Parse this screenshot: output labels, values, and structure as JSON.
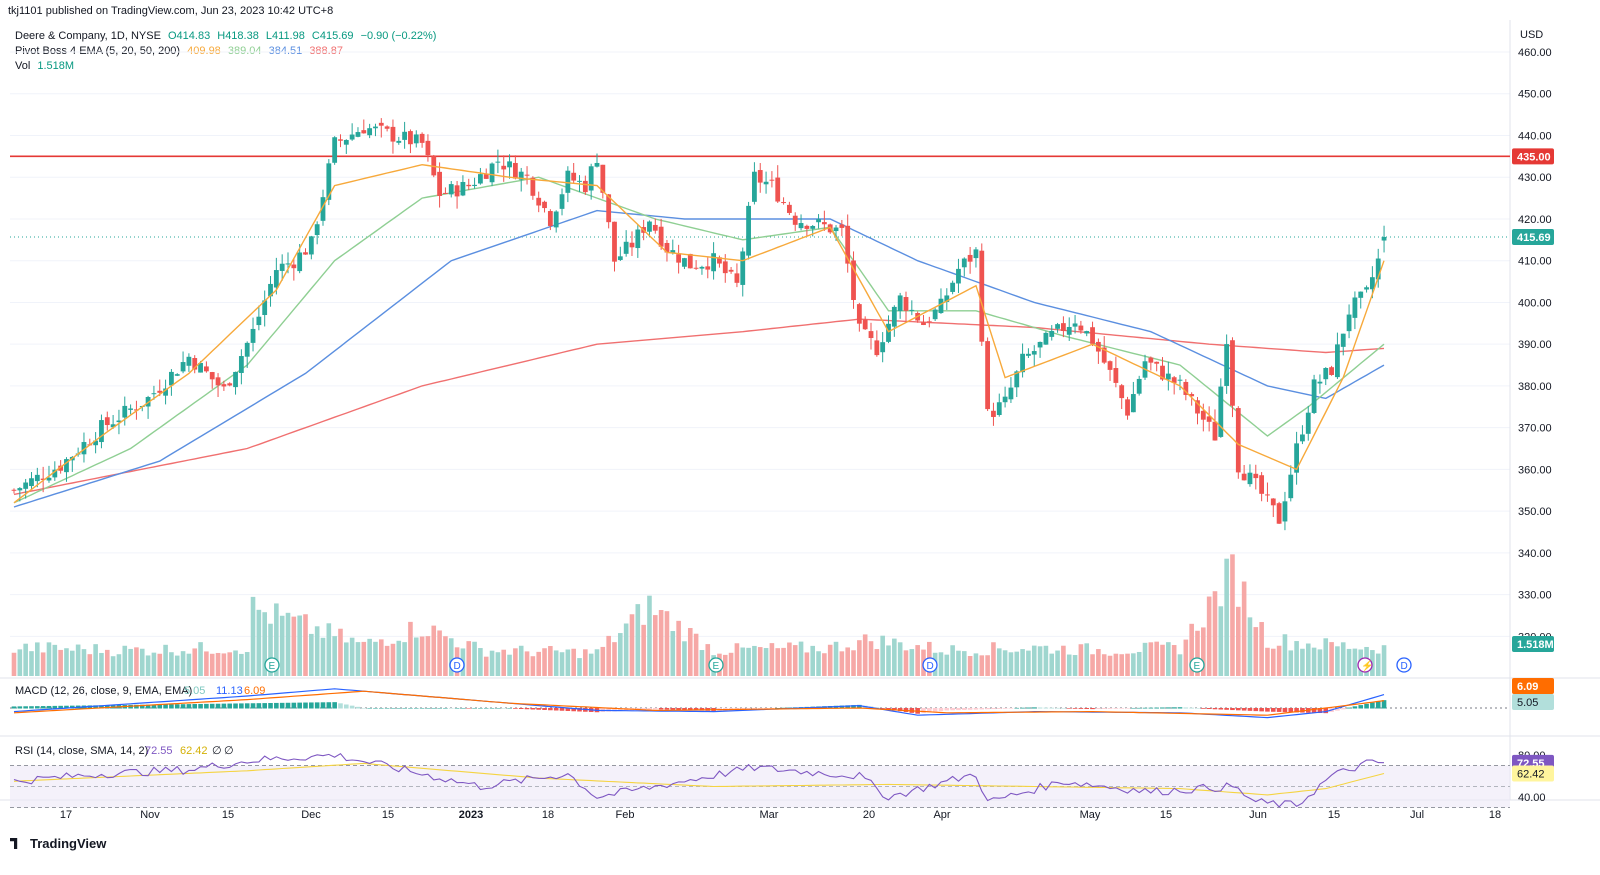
{
  "header": {
    "publisher": "tkj1101 published on TradingView.com, Jun 23, 2023 10:42 UTC+8",
    "symbol": "Deere & Company, 1D, NYSE",
    "ohlc": {
      "o": "O414.83",
      "h": "H418.38",
      "l": "L411.98",
      "c": "C415.69",
      "chg": "−0.90 (−0.22%)"
    },
    "ema_label": "Pivot Boss 4 EMA (5, 20, 50, 200)",
    "ema_values": [
      "409.98",
      "389.04",
      "384.51",
      "388.87"
    ],
    "vol_label": "Vol",
    "vol_value": "1.518M"
  },
  "currency": "USD",
  "colors": {
    "up": "#26a69a",
    "down": "#ef5350",
    "ema5": "#f7a93b",
    "ema20": "#8fcf93",
    "ema50": "#5b8fe0",
    "ema200": "#f07070",
    "resistance": "#e53935",
    "macd": "#2962ff",
    "signal": "#ff6d00",
    "rsi": "#7e57c2",
    "rsi_ma": "#f5d442"
  },
  "price_axis_ticks": [
    "460.00",
    "450.00",
    "440.00",
    "430.00",
    "420.00",
    "410.00",
    "400.00",
    "390.00",
    "380.00",
    "370.00",
    "360.00",
    "350.00",
    "340.00",
    "330.00",
    "320.00"
  ],
  "time_axis_ticks": [
    "17",
    "Nov",
    "15",
    "Dec",
    "15",
    "2023",
    "18",
    "Feb",
    "Mar",
    "20",
    "Apr",
    "May",
    "15",
    "Jun",
    "15",
    "Jul",
    "18"
  ],
  "price_tags": {
    "resistance": "435.00",
    "last": "415.69",
    "volume": "1.518M"
  },
  "event_markers": [
    {
      "text": "E",
      "kind": "earnings"
    },
    {
      "text": "D",
      "kind": "dividend"
    },
    {
      "text": "E",
      "kind": "earnings"
    },
    {
      "text": "D",
      "kind": "dividend"
    },
    {
      "text": "E",
      "kind": "earnings"
    },
    {
      "text": "D",
      "kind": "dividend"
    }
  ],
  "macd": {
    "label": "MACD (12, 26, close, 9, EMA, EMA)",
    "values": [
      "5.05",
      "11.13",
      "6.09"
    ],
    "tags": [
      "6.09",
      "5.05"
    ]
  },
  "rsi": {
    "label": "RSI (14, close, SMA, 14, 2)",
    "values": [
      "72.55",
      "62.42",
      "∅",
      "∅"
    ],
    "axis": [
      "80.00",
      "40.00"
    ],
    "tags": [
      "72.55",
      "62.42"
    ]
  },
  "footer_logo": "TradingView",
  "chart_data": {
    "type": "candlestick",
    "title": "Deere & Company, 1D, NYSE",
    "ylabel": "USD",
    "ylim": [
      338,
      462
    ],
    "resistance_level": 435.0,
    "last_price": 415.69,
    "anchors": [
      [
        0,
        355,
        352
      ],
      [
        8,
        361,
        356
      ],
      [
        15,
        370,
        367
      ],
      [
        23,
        377,
        374
      ],
      [
        30,
        387,
        385
      ],
      [
        36,
        379,
        376
      ],
      [
        41,
        393,
        391
      ],
      [
        45,
        408,
        405
      ],
      [
        48,
        410,
        408
      ],
      [
        51,
        414,
        412
      ],
      [
        52,
        420,
        416
      ],
      [
        55,
        438,
        434
      ],
      [
        60,
        442,
        438
      ],
      [
        65,
        440,
        437
      ],
      [
        70,
        438,
        436
      ],
      [
        73,
        426,
        424
      ],
      [
        78,
        428,
        426
      ],
      [
        83,
        434,
        432
      ],
      [
        88,
        430,
        428
      ],
      [
        92,
        420,
        418
      ],
      [
        95,
        430,
        428
      ],
      [
        98,
        428,
        426
      ],
      [
        100,
        435,
        433
      ],
      [
        103,
        410,
        408
      ],
      [
        106,
        414,
        412
      ],
      [
        109,
        420,
        418
      ],
      [
        112,
        413,
        411
      ],
      [
        116,
        409,
        407
      ],
      [
        120,
        410,
        408
      ],
      [
        124,
        404,
        402
      ],
      [
        127,
        430,
        428
      ],
      [
        130,
        428,
        426
      ],
      [
        134,
        420,
        418
      ],
      [
        137,
        419,
        417
      ],
      [
        142,
        417,
        415
      ],
      [
        145,
        393,
        391
      ],
      [
        148,
        389,
        387
      ],
      [
        152,
        401,
        399
      ],
      [
        156,
        395,
        393
      ],
      [
        159,
        399,
        397
      ],
      [
        162,
        408,
        406
      ],
      [
        165,
        412,
        410
      ],
      [
        167,
        373,
        371
      ],
      [
        170,
        376,
        374
      ],
      [
        173,
        386,
        384
      ],
      [
        178,
        392,
        390
      ],
      [
        182,
        396,
        394
      ],
      [
        185,
        391,
        389
      ],
      [
        188,
        383,
        381
      ],
      [
        191,
        374,
        372
      ],
      [
        194,
        386,
        384
      ],
      [
        197,
        383,
        381
      ],
      [
        200,
        380,
        378
      ],
      [
        203,
        374,
        372
      ],
      [
        206,
        368,
        366
      ],
      [
        208,
        392,
        390
      ],
      [
        210,
        361,
        359
      ],
      [
        213,
        356,
        354
      ],
      [
        217,
        348,
        346
      ],
      [
        220,
        365,
        363
      ],
      [
        223,
        380,
        378
      ],
      [
        226,
        384,
        382
      ],
      [
        229,
        398,
        396
      ],
      [
        232,
        402,
        400
      ],
      [
        234,
        410,
        408
      ],
      [
        235,
        416,
        416
      ]
    ],
    "ohlc": [],
    "ema5_anchors": [
      [
        0,
        352
      ],
      [
        15,
        368
      ],
      [
        30,
        383
      ],
      [
        45,
        403
      ],
      [
        55,
        428
      ],
      [
        70,
        433
      ],
      [
        85,
        430
      ],
      [
        100,
        428
      ],
      [
        112,
        412
      ],
      [
        125,
        410
      ],
      [
        140,
        418
      ],
      [
        150,
        393
      ],
      [
        165,
        404
      ],
      [
        170,
        382
      ],
      [
        185,
        390
      ],
      [
        200,
        380
      ],
      [
        210,
        366
      ],
      [
        220,
        360
      ],
      [
        228,
        382
      ],
      [
        235,
        410
      ]
    ],
    "ema20_anchors": [
      [
        0,
        352
      ],
      [
        20,
        365
      ],
      [
        40,
        385
      ],
      [
        55,
        410
      ],
      [
        70,
        425
      ],
      [
        90,
        430
      ],
      [
        110,
        420
      ],
      [
        125,
        415
      ],
      [
        140,
        418
      ],
      [
        150,
        398
      ],
      [
        165,
        398
      ],
      [
        180,
        392
      ],
      [
        200,
        385
      ],
      [
        215,
        368
      ],
      [
        222,
        375
      ],
      [
        235,
        390
      ]
    ],
    "ema50_anchors": [
      [
        0,
        351
      ],
      [
        25,
        362
      ],
      [
        50,
        383
      ],
      [
        75,
        410
      ],
      [
        100,
        422
      ],
      [
        115,
        420
      ],
      [
        140,
        420
      ],
      [
        155,
        410
      ],
      [
        175,
        400
      ],
      [
        195,
        393
      ],
      [
        215,
        380
      ],
      [
        225,
        377
      ],
      [
        235,
        385
      ]
    ],
    "ema200_anchors": [
      [
        0,
        354
      ],
      [
        40,
        365
      ],
      [
        70,
        380
      ],
      [
        100,
        390
      ],
      [
        125,
        393
      ],
      [
        145,
        396
      ],
      [
        175,
        394
      ],
      [
        205,
        390
      ],
      [
        225,
        388
      ],
      [
        235,
        389
      ]
    ],
    "volume_anchors": [
      [
        0,
        0.55
      ],
      [
        20,
        0.5
      ],
      [
        40,
        0.55
      ],
      [
        41,
        1.3
      ],
      [
        60,
        0.6
      ],
      [
        70,
        0.95
      ],
      [
        80,
        0.5
      ],
      [
        100,
        0.45
      ],
      [
        109,
        1.35
      ],
      [
        120,
        0.5
      ],
      [
        140,
        0.55
      ],
      [
        147,
        0.7
      ],
      [
        160,
        0.5
      ],
      [
        175,
        0.55
      ],
      [
        187,
        0.5
      ],
      [
        200,
        0.55
      ],
      [
        209,
        2.0
      ],
      [
        215,
        0.7
      ],
      [
        225,
        0.6
      ],
      [
        235,
        0.55
      ]
    ],
    "macd_anchors": [
      [
        0,
        -3
      ],
      [
        40,
        10
      ],
      [
        55,
        16
      ],
      [
        75,
        8
      ],
      [
        100,
        -2
      ],
      [
        120,
        -3
      ],
      [
        145,
        2
      ],
      [
        155,
        -6
      ],
      [
        175,
        -3
      ],
      [
        200,
        -4
      ],
      [
        215,
        -8
      ],
      [
        225,
        -3
      ],
      [
        235,
        11.13
      ]
    ],
    "signal_anchors": [
      [
        0,
        -4
      ],
      [
        40,
        7
      ],
      [
        60,
        14
      ],
      [
        85,
        4
      ],
      [
        110,
        -2
      ],
      [
        145,
        0
      ],
      [
        160,
        -4
      ],
      [
        185,
        -3
      ],
      [
        215,
        -6
      ],
      [
        230,
        3
      ],
      [
        235,
        6.09
      ]
    ],
    "rsi_anchors": [
      [
        0,
        55
      ],
      [
        15,
        62
      ],
      [
        30,
        66
      ],
      [
        41,
        75
      ],
      [
        55,
        80
      ],
      [
        70,
        62
      ],
      [
        80,
        50
      ],
      [
        95,
        62
      ],
      [
        100,
        40
      ],
      [
        110,
        50
      ],
      [
        127,
        68
      ],
      [
        145,
        60
      ],
      [
        150,
        40
      ],
      [
        165,
        62
      ],
      [
        167,
        35
      ],
      [
        180,
        55
      ],
      [
        195,
        45
      ],
      [
        209,
        50
      ],
      [
        213,
        35
      ],
      [
        220,
        32
      ],
      [
        226,
        60
      ],
      [
        232,
        72
      ],
      [
        235,
        72.55
      ]
    ],
    "rsi_ma_anchors": [
      [
        0,
        55
      ],
      [
        40,
        65
      ],
      [
        60,
        72
      ],
      [
        90,
        58
      ],
      [
        120,
        50
      ],
      [
        150,
        52
      ],
      [
        175,
        50
      ],
      [
        200,
        48
      ],
      [
        215,
        42
      ],
      [
        225,
        48
      ],
      [
        235,
        62.42
      ]
    ]
  }
}
